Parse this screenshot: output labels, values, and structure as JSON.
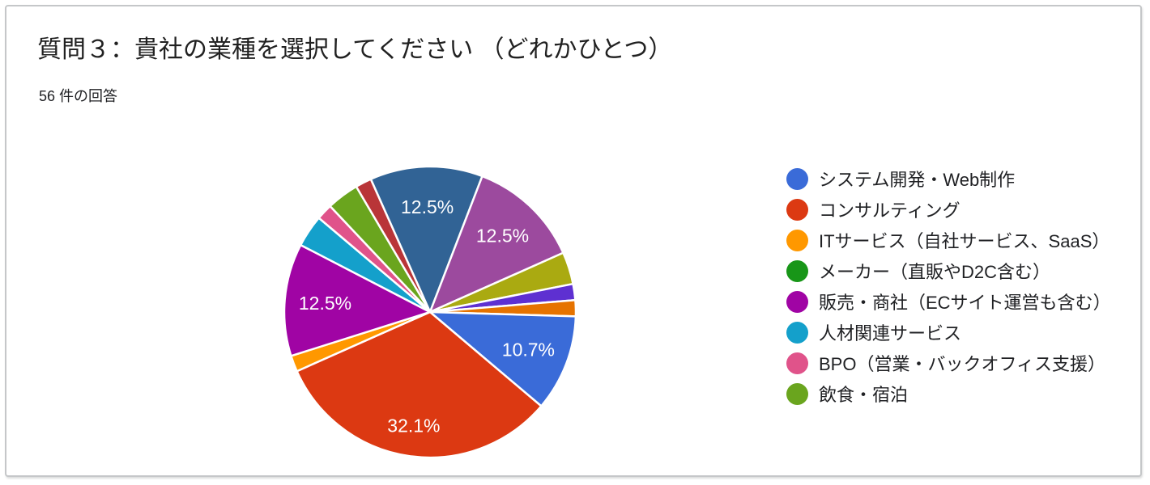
{
  "chart_data": {
    "type": "pie",
    "title": "質問３：貴社の業種を選択してください （どれかひとつ）",
    "subtitle": "56 件の回答",
    "total_responses": 56,
    "start_angle_deg": -24,
    "legend_position": "right",
    "grid": false,
    "slices": [
      {
        "color": "#316395",
        "count": 7,
        "pct": 12.5,
        "label": "12.5%"
      },
      {
        "color": "#9C4A9E",
        "count": 7,
        "pct": 12.5,
        "label": "12.5%"
      },
      {
        "color": "#AAAA11",
        "count": 2,
        "pct": 3.6,
        "label": ""
      },
      {
        "color": "#5E30D1",
        "count": 1,
        "pct": 1.8,
        "label": ""
      },
      {
        "color": "#E67300",
        "count": 1,
        "pct": 1.8,
        "label": ""
      },
      {
        "color": "#3A6BD8",
        "count": 6,
        "pct": 10.7,
        "label": "10.7%"
      },
      {
        "color": "#DC3912",
        "count": 18,
        "pct": 32.1,
        "label": "32.1%"
      },
      {
        "color": "#FF9800",
        "count": 1,
        "pct": 1.8,
        "label": ""
      },
      {
        "color": "#A004A4",
        "count": 7,
        "pct": 12.5,
        "label": "12.5%"
      },
      {
        "color": "#14A0CB",
        "count": 2,
        "pct": 3.6,
        "label": ""
      },
      {
        "color": "#E0538A",
        "count": 1,
        "pct": 1.8,
        "label": ""
      },
      {
        "color": "#6AA51E",
        "count": 2,
        "pct": 3.6,
        "label": ""
      },
      {
        "color": "#B93538",
        "count": 1,
        "pct": 1.8,
        "label": ""
      }
    ],
    "legend": [
      {
        "label": "システム開発・Web制作",
        "color": "#3A6BD8"
      },
      {
        "label": "コンサルティング",
        "color": "#DC3912"
      },
      {
        "label": "ITサービス（自社サービス、SaaS）",
        "color": "#FF9800"
      },
      {
        "label": "メーカー（直販やD2C含む）",
        "color": "#189618"
      },
      {
        "label": "販売・商社（ECサイト運営も含む）",
        "color": "#A004A4"
      },
      {
        "label": "人材関連サービス",
        "color": "#14A0CB"
      },
      {
        "label": "BPO（営業・バックオフィス支援）",
        "color": "#E0538A"
      },
      {
        "label": "飲食・宿泊",
        "color": "#6AA51E"
      }
    ]
  }
}
